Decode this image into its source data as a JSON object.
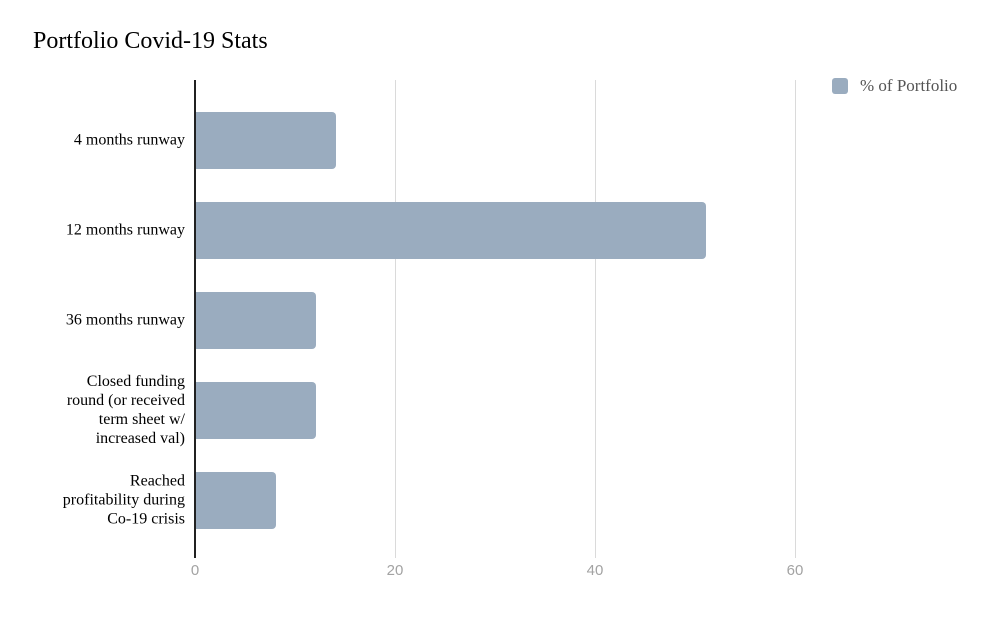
{
  "title": "Portfolio Covid-19 Stats",
  "legend": {
    "label": "% of Portfolio"
  },
  "colors": {
    "background": "#ffffff",
    "title": "#000000",
    "category_label": "#000000",
    "bar": "#9aacbf",
    "gridline": "#dadada",
    "axis": "#212121",
    "tick_label": "#a3a3a3",
    "legend_text": "#545454"
  },
  "chart_data": {
    "type": "bar",
    "orientation": "horizontal",
    "title": "Portfolio Covid-19 Stats",
    "xlabel": "",
    "ylabel": "",
    "categories": [
      "4 months runway",
      "12 months runway",
      "36 months runway",
      "Closed funding\nround (or received\nterm sheet w/\nincreased val)",
      "Reached\nprofitability during\nCo-19 crisis"
    ],
    "series": [
      {
        "name": "% of Portfolio",
        "values": [
          14,
          51,
          12,
          12,
          8
        ]
      }
    ],
    "x_ticks": [
      0,
      20,
      40,
      60
    ],
    "xlim": [
      0,
      79
    ],
    "grid": "vertical",
    "legend_position": "top-right"
  }
}
